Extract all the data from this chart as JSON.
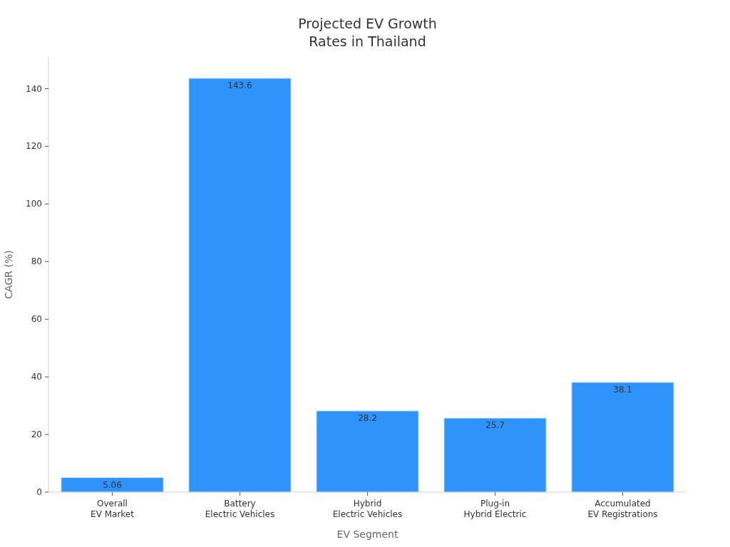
{
  "chart_data": {
    "type": "bar",
    "title": "Projected EV Growth\nRates in Thailand",
    "xlabel": "EV Segment",
    "ylabel": "CAGR (%)",
    "categories": [
      "Overall\nEV Market",
      "Battery\nElectric Vehicles",
      "Hybrid\nElectric Vehicles",
      "Plug-in\nHybrid Electric",
      "Accumulated\nEV Registrations"
    ],
    "values": [
      5.06,
      143.6,
      28.2,
      25.7,
      38.1
    ],
    "color": "#2e93fa",
    "ylim": [
      0,
      151
    ],
    "yticks": [
      0,
      20,
      40,
      60,
      80,
      100,
      120,
      140
    ],
    "data_labels": true
  }
}
